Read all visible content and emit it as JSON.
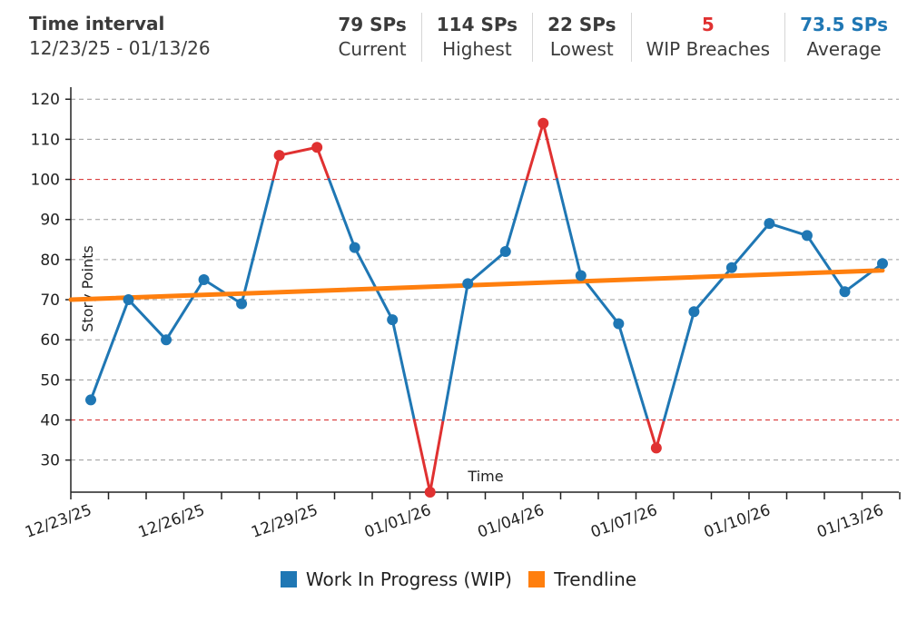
{
  "header": {
    "interval_title": "Time interval",
    "interval_range": "12/23/25 - 01/13/26",
    "stats": [
      {
        "value": "79 SPs",
        "label": "Current",
        "color": "#3b3b3b"
      },
      {
        "value": "114 SPs",
        "label": "Highest",
        "color": "#3b3b3b"
      },
      {
        "value": "22 SPs",
        "label": "Lowest",
        "color": "#3b3b3b"
      },
      {
        "value": "5",
        "label": "WIP Breaches",
        "color": "#e03131"
      },
      {
        "value": "73.5 SPs",
        "label": "Average",
        "color": "#1f77b4"
      }
    ]
  },
  "chart_data": {
    "type": "line",
    "ylabel": "Story Points",
    "xlabel": "Time",
    "ylim": [
      22,
      123
    ],
    "yticks": [
      30,
      40,
      50,
      60,
      70,
      80,
      90,
      100,
      110,
      120
    ],
    "x_tick_labels": [
      "12/23/25",
      "12/26/25",
      "12/29/25",
      "01/01/26",
      "01/04/26",
      "01/07/26",
      "01/10/26",
      "01/13/26"
    ],
    "wip_limits": {
      "upper": 100,
      "lower": 40
    },
    "series": [
      {
        "name": "Work In Progress (WIP)",
        "color": "#1f77b4",
        "breach_color": "#e03131",
        "values": [
          45,
          70,
          60,
          75,
          69,
          106,
          108,
          83,
          65,
          22,
          74,
          82,
          114,
          76,
          64,
          33,
          67,
          78,
          89,
          86,
          72,
          79
        ]
      },
      {
        "name": "Trendline",
        "color": "#ff7f0e",
        "start": 70,
        "end": 77.3
      }
    ]
  }
}
